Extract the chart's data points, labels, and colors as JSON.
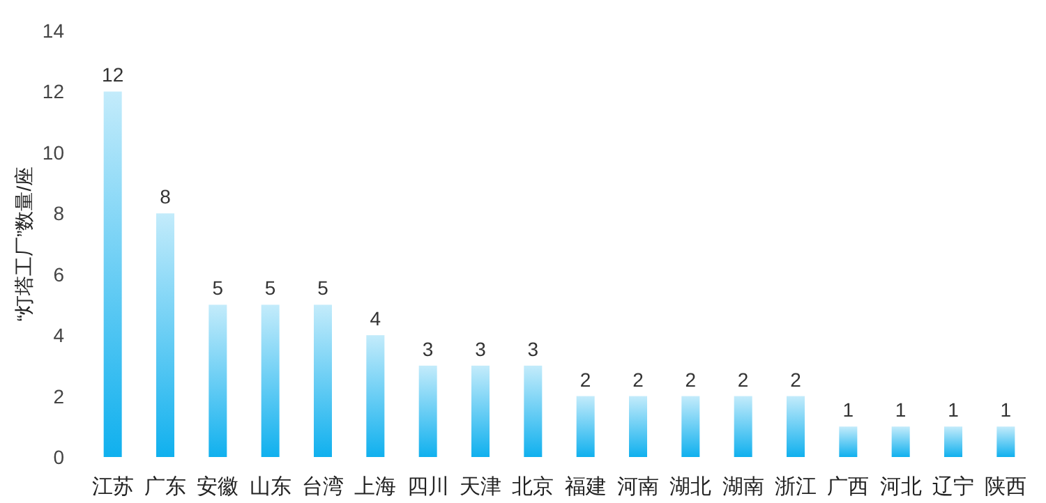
{
  "chart_data": {
    "type": "bar",
    "ylabel": "“灯塔工厂”数量/座",
    "categories": [
      "江苏",
      "广东",
      "安徽",
      "山东",
      "台湾",
      "上海",
      "四川",
      "天津",
      "北京",
      "福建",
      "河南",
      "湖北",
      "湖南",
      "浙江",
      "广西",
      "河北",
      "辽宁",
      "陕西"
    ],
    "values": [
      12,
      8,
      5,
      5,
      5,
      4,
      3,
      3,
      3,
      2,
      2,
      2,
      2,
      2,
      1,
      1,
      1,
      1
    ],
    "color": "#10b0ee",
    "ylim": [
      0,
      14
    ],
    "yticks": [
      0,
      2,
      4,
      6,
      8,
      10,
      12,
      14
    ],
    "data_labels": true
  }
}
